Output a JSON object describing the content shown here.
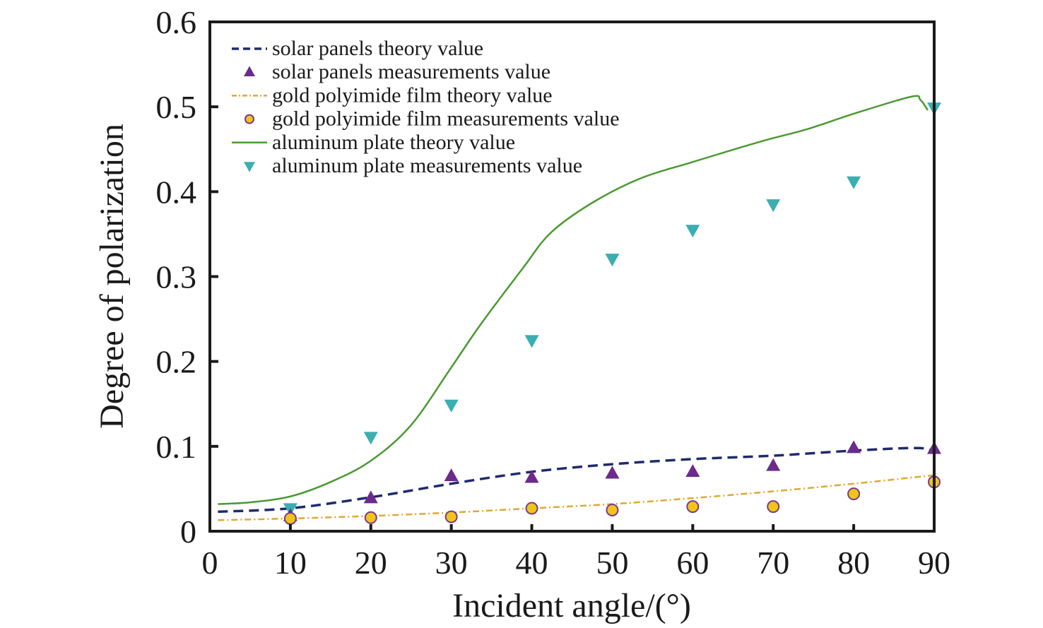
{
  "chart_data": {
    "type": "line",
    "title": "",
    "xlabel": "Incident angle/(°)",
    "ylabel": "Degree of polarization",
    "xlim": [
      0,
      90
    ],
    "ylim": [
      0,
      0.6
    ],
    "xticks": [
      0,
      10,
      20,
      30,
      40,
      50,
      60,
      70,
      80,
      90
    ],
    "xtick_labels": [
      "0",
      "10",
      "20",
      "30",
      "40",
      "50",
      "60",
      "70",
      "80",
      "90"
    ],
    "yticks": [
      0,
      0.1,
      0.2,
      0.3,
      0.4,
      0.5,
      0.6
    ],
    "ytick_labels": [
      "0",
      "0.1",
      "0.2",
      "0.3",
      "0.4",
      "0.5",
      "0.6"
    ],
    "grid": false,
    "legend_position": "top-left",
    "series": [
      {
        "name": "solar panels theory value",
        "kind": "line",
        "style": "dashed",
        "color": "#1f2a6e",
        "x": [
          1,
          10,
          20,
          30,
          40,
          50,
          60,
          70,
          80,
          88,
          90
        ],
        "y": [
          0.023,
          0.027,
          0.04,
          0.056,
          0.07,
          0.079,
          0.085,
          0.089,
          0.095,
          0.098,
          0.093
        ]
      },
      {
        "name": "solar panels measurements value",
        "kind": "scatter",
        "marker": "triangle-up",
        "color": "#6b2a8c",
        "x": [
          10,
          20,
          30,
          40,
          50,
          60,
          70,
          80,
          90
        ],
        "y": [
          0.018,
          0.039,
          0.065,
          0.063,
          0.068,
          0.07,
          0.077,
          0.098,
          0.097
        ]
      },
      {
        "name": "gold polyimide film theory value",
        "kind": "line",
        "style": "dash-dot",
        "color": "#e0a832",
        "x": [
          1,
          10,
          20,
          30,
          40,
          50,
          60,
          70,
          80,
          90
        ],
        "y": [
          0.013,
          0.015,
          0.018,
          0.022,
          0.027,
          0.032,
          0.039,
          0.047,
          0.056,
          0.066
        ]
      },
      {
        "name": "gold polyimide film measurements value",
        "kind": "scatter",
        "marker": "circle",
        "color": "#f0c419",
        "edge_color": "#7a3a8c",
        "x": [
          10,
          20,
          30,
          40,
          50,
          60,
          70,
          80,
          90
        ],
        "y": [
          0.015,
          0.016,
          0.017,
          0.027,
          0.025,
          0.029,
          0.029,
          0.044,
          0.058
        ]
      },
      {
        "name": "aluminum plate theory value",
        "kind": "line",
        "style": "solid",
        "color": "#4a9a30",
        "x": [
          1,
          5,
          10,
          15,
          20,
          25,
          30,
          33.6,
          38.9,
          42.4,
          47.7,
          53.6,
          60,
          68.8,
          74,
          80.4,
          87.2,
          88.3,
          89.2
        ],
        "y": [
          0.032,
          0.034,
          0.041,
          0.058,
          0.083,
          0.125,
          0.193,
          0.243,
          0.31,
          0.352,
          0.388,
          0.416,
          0.435,
          0.46,
          0.473,
          0.493,
          0.512,
          0.508,
          0.496
        ]
      },
      {
        "name": "aluminum plate measurements value",
        "kind": "scatter",
        "marker": "triangle-down",
        "color": "#3aaeb0",
        "x": [
          10,
          20,
          30,
          40,
          50,
          60,
          70,
          80,
          90
        ],
        "y": [
          0.027,
          0.111,
          0.149,
          0.225,
          0.321,
          0.355,
          0.385,
          0.412,
          0.499
        ]
      }
    ]
  }
}
